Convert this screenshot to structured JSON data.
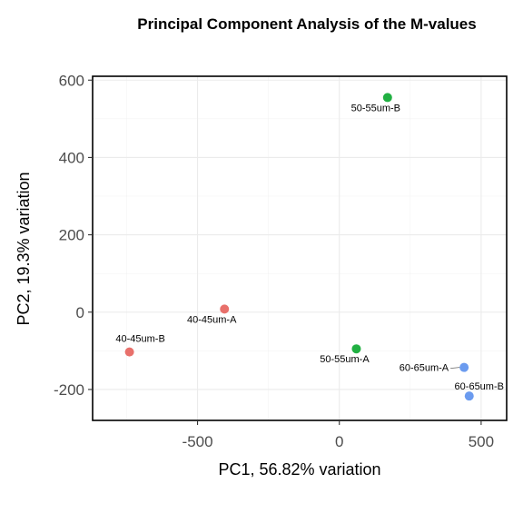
{
  "chart_data": {
    "type": "scatter",
    "title": "Principal Component Analysis of the M-values",
    "xlabel": "PC1, 56.82% variation",
    "ylabel": "PC2, 19.3% variation",
    "xlim": [
      -870,
      590
    ],
    "ylim": [
      -280,
      610
    ],
    "xticks": [
      -500,
      0,
      500
    ],
    "yticks": [
      -200,
      0,
      200,
      400,
      600
    ],
    "grid": true,
    "legend": "none",
    "groups": [
      {
        "key": "40-45um",
        "color": "#e8706b"
      },
      {
        "key": "50-55um",
        "color": "#21b042"
      },
      {
        "key": "60-65um",
        "color": "#6b9bef"
      }
    ],
    "points": [
      {
        "label": "40-45um-A",
        "group": "40-45um",
        "x": -405,
        "y": 8
      },
      {
        "label": "40-45um-B",
        "group": "40-45um",
        "x": -740,
        "y": -103
      },
      {
        "label": "50-55um-A",
        "group": "50-55um",
        "x": 60,
        "y": -95
      },
      {
        "label": "50-55um-B",
        "group": "50-55um",
        "x": 170,
        "y": 555
      },
      {
        "label": "60-65um-A",
        "group": "60-65um",
        "x": 440,
        "y": -143
      },
      {
        "label": "60-65um-B",
        "group": "60-65um",
        "x": 458,
        "y": -217
      }
    ]
  }
}
